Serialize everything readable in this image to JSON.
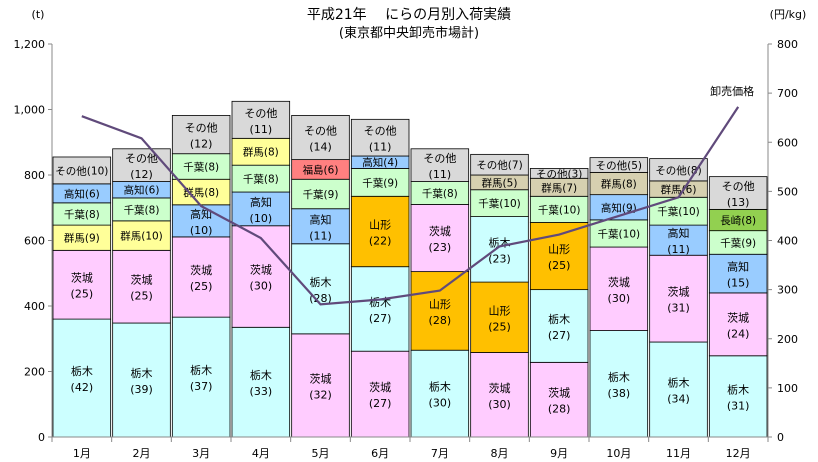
{
  "chart_data": {
    "type": "bar",
    "stacked": true,
    "title": "平成21年　 にらの月別入荷実績",
    "subtitle": "(東京都中央卸売市場計)",
    "left_unit": "(t)",
    "right_unit": "(円/kg)",
    "ylim": [
      0,
      1200
    ],
    "yticks": [
      "0",
      "200",
      "400",
      "600",
      "800",
      "1,000",
      "1,200"
    ],
    "y2lim": [
      0,
      800
    ],
    "y2ticks": [
      "0",
      "100",
      "200",
      "300",
      "400",
      "500",
      "600",
      "700",
      "800"
    ],
    "grid": false,
    "categories": [
      "1月",
      "2月",
      "3月",
      "4月",
      "5月",
      "6月",
      "7月",
      "8月",
      "9月",
      "10月",
      "11月",
      "12月"
    ],
    "colors": {
      "栃木": "#ccffff",
      "茨城": "#ffccff",
      "群馬": "#ffff99",
      "千葉": "#ccffcc",
      "高知": "#99ccff",
      "福島": "#ff8080",
      "山形": "#ffc000",
      "長崎": "#92d050",
      "その他": "#d9d9d9",
      "群馬_dark": "#d6d0b0"
    },
    "stacks": [
      {
        "month": "1月",
        "segments": [
          {
            "name": "栃木",
            "value": 360,
            "pct": "(42)",
            "color": "栃木"
          },
          {
            "name": "茨城",
            "value": 210,
            "pct": "(25)",
            "color": "茨城"
          },
          {
            "name": "群馬",
            "value": 77,
            "pct": "(9)",
            "color": "群馬"
          },
          {
            "name": "千葉",
            "value": 68,
            "pct": "(8)",
            "color": "千葉"
          },
          {
            "name": "高知",
            "value": 58,
            "pct": "(6)",
            "color": "高知"
          },
          {
            "name": "その他",
            "value": 82,
            "pct": "(10)",
            "color": "その他"
          }
        ]
      },
      {
        "month": "2月",
        "segments": [
          {
            "name": "栃木",
            "value": 348,
            "pct": "(39)",
            "color": "栃木"
          },
          {
            "name": "茨城",
            "value": 222,
            "pct": "(25)",
            "color": "茨城"
          },
          {
            "name": "群馬",
            "value": 90,
            "pct": "(10)",
            "color": "群馬"
          },
          {
            "name": "千葉",
            "value": 70,
            "pct": "(8)",
            "color": "千葉"
          },
          {
            "name": "高知",
            "value": 50,
            "pct": "(6)",
            "color": "高知"
          },
          {
            "name": "その他",
            "value": 100,
            "pct": "(12)",
            "color": "その他"
          }
        ]
      },
      {
        "month": "3月",
        "segments": [
          {
            "name": "栃木",
            "value": 366,
            "pct": "(37)",
            "color": "栃木"
          },
          {
            "name": "茨城",
            "value": 245,
            "pct": "(25)",
            "color": "茨城"
          },
          {
            "name": "高知",
            "value": 98,
            "pct": "(10)",
            "color": "高知"
          },
          {
            "name": "群馬",
            "value": 78,
            "pct": "(8)",
            "color": "群馬"
          },
          {
            "name": "千葉",
            "value": 78,
            "pct": "(8)",
            "color": "千葉"
          },
          {
            "name": "その他",
            "value": 117,
            "pct": "(12)",
            "color": "その他"
          }
        ]
      },
      {
        "month": "4月",
        "segments": [
          {
            "name": "栃木",
            "value": 335,
            "pct": "(33)",
            "color": "栃木"
          },
          {
            "name": "茨城",
            "value": 310,
            "pct": "(30)",
            "color": "茨城"
          },
          {
            "name": "高知",
            "value": 103,
            "pct": "(10)",
            "color": "高知"
          },
          {
            "name": "千葉",
            "value": 82,
            "pct": "(8)",
            "color": "千葉"
          },
          {
            "name": "群馬",
            "value": 82,
            "pct": "(8)",
            "color": "群馬"
          },
          {
            "name": "その他",
            "value": 113,
            "pct": "(11)",
            "color": "その他"
          }
        ]
      },
      {
        "month": "5月",
        "segments": [
          {
            "name": "茨城",
            "value": 315,
            "pct": "(32)",
            "color": "茨城"
          },
          {
            "name": "栃木",
            "value": 275,
            "pct": "(28)",
            "color": "栃木"
          },
          {
            "name": "高知",
            "value": 107,
            "pct": "(11)",
            "color": "高知"
          },
          {
            "name": "千葉",
            "value": 90,
            "pct": "(9)",
            "color": "千葉"
          },
          {
            "name": "福島",
            "value": 60,
            "pct": "(6)",
            "color": "福島"
          },
          {
            "name": "その他",
            "value": 135,
            "pct": "(14)",
            "color": "その他"
          }
        ]
      },
      {
        "month": "6月",
        "segments": [
          {
            "name": "茨城",
            "value": 262,
            "pct": "(27)",
            "color": "茨城"
          },
          {
            "name": "栃木",
            "value": 258,
            "pct": "(27)",
            "color": "栃木"
          },
          {
            "name": "山形",
            "value": 215,
            "pct": "(22)",
            "color": "山形"
          },
          {
            "name": "千葉",
            "value": 85,
            "pct": "(9)",
            "color": "千葉"
          },
          {
            "name": "高知",
            "value": 38,
            "pct": "(4)",
            "color": "高知"
          },
          {
            "name": "その他",
            "value": 112,
            "pct": "(11)",
            "color": "その他"
          }
        ]
      },
      {
        "month": "7月",
        "segments": [
          {
            "name": "栃木",
            "value": 265,
            "pct": "(30)",
            "color": "栃木"
          },
          {
            "name": "山形",
            "value": 240,
            "pct": "(28)",
            "color": "山形"
          },
          {
            "name": "茨城",
            "value": 205,
            "pct": "(23)",
            "color": "茨城"
          },
          {
            "name": "千葉",
            "value": 70,
            "pct": "(8)",
            "color": "千葉"
          },
          {
            "name": "その他",
            "value": 100,
            "pct": "(11)",
            "color": "その他"
          }
        ]
      },
      {
        "month": "8月",
        "segments": [
          {
            "name": "茨城",
            "value": 258,
            "pct": "(30)",
            "color": "茨城"
          },
          {
            "name": "山形",
            "value": 215,
            "pct": "(25)",
            "color": "山形"
          },
          {
            "name": "栃木",
            "value": 200,
            "pct": "(23)",
            "color": "栃木"
          },
          {
            "name": "千葉",
            "value": 82,
            "pct": "(10)",
            "color": "千葉"
          },
          {
            "name": "群馬",
            "value": 45,
            "pct": "(5)",
            "color": "群馬_dark"
          },
          {
            "name": "その他",
            "value": 63,
            "pct": "(7)",
            "color": "その他"
          }
        ]
      },
      {
        "month": "9月",
        "segments": [
          {
            "name": "茨城",
            "value": 228,
            "pct": "(28)",
            "color": "茨城"
          },
          {
            "name": "栃木",
            "value": 222,
            "pct": "(27)",
            "color": "栃木"
          },
          {
            "name": "山形",
            "value": 205,
            "pct": "(25)",
            "color": "山形"
          },
          {
            "name": "千葉",
            "value": 80,
            "pct": "(10)",
            "color": "千葉"
          },
          {
            "name": "群馬",
            "value": 55,
            "pct": "(7)",
            "color": "群馬_dark"
          },
          {
            "name": "その他",
            "value": 30,
            "pct": "(3)",
            "color": "その他"
          }
        ]
      },
      {
        "month": "10月",
        "segments": [
          {
            "name": "栃木",
            "value": 325,
            "pct": "(38)",
            "color": "栃木"
          },
          {
            "name": "茨城",
            "value": 255,
            "pct": "(30)",
            "color": "茨城"
          },
          {
            "name": "千葉",
            "value": 83,
            "pct": "(10)",
            "color": "千葉"
          },
          {
            "name": "高知",
            "value": 77,
            "pct": "(9)",
            "color": "高知"
          },
          {
            "name": "群馬",
            "value": 68,
            "pct": "(8)",
            "color": "群馬_dark"
          },
          {
            "name": "その他",
            "value": 45,
            "pct": "(5)",
            "color": "その他"
          }
        ]
      },
      {
        "month": "11月",
        "segments": [
          {
            "name": "栃木",
            "value": 290,
            "pct": "(34)",
            "color": "栃木"
          },
          {
            "name": "茨城",
            "value": 265,
            "pct": "(31)",
            "color": "茨城"
          },
          {
            "name": "高知",
            "value": 92,
            "pct": "(11)",
            "color": "高知"
          },
          {
            "name": "千葉",
            "value": 85,
            "pct": "(10)",
            "color": "千葉"
          },
          {
            "name": "群馬",
            "value": 50,
            "pct": "(6)",
            "color": "群馬_dark"
          },
          {
            "name": "その他",
            "value": 68,
            "pct": "(8)",
            "color": "その他"
          }
        ]
      },
      {
        "month": "12月",
        "segments": [
          {
            "name": "栃木",
            "value": 248,
            "pct": "(31)",
            "color": "栃木"
          },
          {
            "name": "茨城",
            "value": 192,
            "pct": "(24)",
            "color": "茨城"
          },
          {
            "name": "高知",
            "value": 118,
            "pct": "(15)",
            "color": "高知"
          },
          {
            "name": "千葉",
            "value": 72,
            "pct": "(9)",
            "color": "千葉"
          },
          {
            "name": "長崎",
            "value": 65,
            "pct": "(8)",
            "color": "長崎"
          },
          {
            "name": "その他",
            "value": 100,
            "pct": "(13)",
            "color": "その他"
          }
        ]
      }
    ],
    "line": {
      "name": "卸売価格",
      "unit_axis": "right",
      "color": "#604a7b",
      "values": [
        653,
        608,
        470,
        405,
        270,
        280,
        298,
        388,
        412,
        450,
        488,
        672
      ]
    }
  }
}
